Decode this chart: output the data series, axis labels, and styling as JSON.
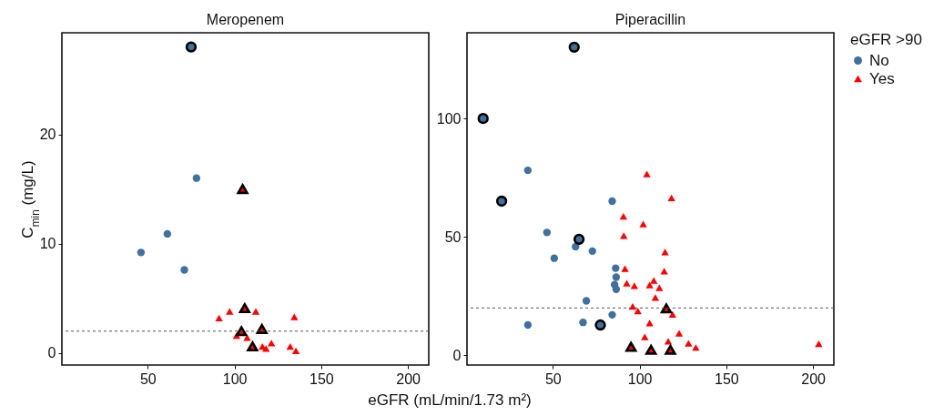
{
  "chart_data": [
    {
      "type": "scatter",
      "title": "Meropenem",
      "xlabel": "eGFR (mL/min/1.73 m²)",
      "ylabel": "C$_{min}$ (mg/L)",
      "xlim": [
        0.5,
        212
      ],
      "xticks": [
        50,
        100,
        150,
        200
      ],
      "ylim": [
        -1.1,
        29.3
      ],
      "yticks": [
        0,
        10,
        20
      ],
      "grid": false,
      "ref_lines": [
        {
          "axis": "y",
          "value": 2,
          "line_style": "dashed",
          "color": "#555555"
        }
      ],
      "series": [
        {
          "color": "#41709c",
          "marker": "circle",
          "x": [
            46.1,
            61.3,
            71.1,
            78.1
          ],
          "values": [
            9.2,
            10.9,
            7.6,
            16.0
          ]
        },
        {
          "color": "#ff0000",
          "marker": "triangle",
          "x": [
            91.1,
            97.2,
            112.3,
            134.5,
            101.2,
            107.3,
            116.1,
            118.2,
            121.3,
            132.1,
            135.4
          ],
          "values": [
            3.2,
            3.8,
            3.8,
            3.3,
            1.6,
            1.4,
            0.6,
            0.4,
            0.9,
            0.6,
            0.2
          ]
        },
        {
          "color": "#41709c",
          "marker": "circle",
          "x": [
            75.0
          ],
          "values": [
            28.0
          ]
        },
        {
          "color": "#ff0000",
          "marker": "triangle",
          "x": [
            104.7,
            105.9,
            104.0,
            115.8,
            110.4
          ],
          "values": [
            15.0,
            4.1,
            2.0,
            2.2,
            0.6
          ]
        }
      ]
    },
    {
      "type": "scatter",
      "title": "Piperacillin",
      "legend_title": "eGFR >90",
      "legend": "right",
      "xlim": [
        0.5,
        212
      ],
      "xticks": [
        50,
        100,
        150,
        200
      ],
      "ylim": [
        -4.1,
        136.2
      ],
      "yticks": [
        0,
        50,
        100
      ],
      "grid": false,
      "ref_lines": [
        {
          "axis": "y",
          "value": 20,
          "line_style": "dashed",
          "color": "#555555"
        }
      ],
      "series": [
        {
          "name": "No",
          "color": "#41709c",
          "marker": "circle",
          "x": [
            35.6,
            84.2,
            46.6,
            63.1,
            72.8,
            50.8,
            86.2,
            86.5,
            85.6,
            86.5,
            69.3,
            84.2,
            35.6,
            67.4
          ],
          "values": [
            78.1,
            65.1,
            51.9,
            45.9,
            44.0,
            41.0,
            36.8,
            33.0,
            29.8,
            27.9,
            23.0,
            17.1,
            12.8,
            13.9
          ]
        },
        {
          "name": "Yes",
          "color": "#ff0000",
          "marker": "triangle",
          "x": [
            104.2,
            118.4,
            90.7,
            102.1,
            90.9,
            114.7,
            91.6,
            114.2,
            92.6,
            97.0,
            108.2,
            105.8,
            111.4,
            109.1,
            96.0,
            99.0,
            119.0,
            105.8,
            103.0,
            122.8,
            116.5,
            128.2,
            132.4,
            203.3
          ],
          "values": [
            76.6,
            66.5,
            58.7,
            55.4,
            50.5,
            43.6,
            36.6,
            35.5,
            30.4,
            29.4,
            31.6,
            29.7,
            28.5,
            24.4,
            20.6,
            18.7,
            17.3,
            13.6,
            7.8,
            9.3,
            5.9,
            5.1,
            3.3,
            4.9
          ]
        },
        {
          "color": "#41709c",
          "marker": "circle",
          "x": [
            62.3,
            9.8,
            20.5,
            65.1,
            77.4
          ],
          "values": [
            130.1,
            100.0,
            65.1,
            49.0,
            12.8
          ]
        },
        {
          "color": "#ff0000",
          "marker": "triangle",
          "x": [
            115.4,
            95.1,
            106.6,
            117.8
          ],
          "values": [
            19.8,
            3.6,
            2.3,
            2.3
          ]
        }
      ]
    }
  ]
}
